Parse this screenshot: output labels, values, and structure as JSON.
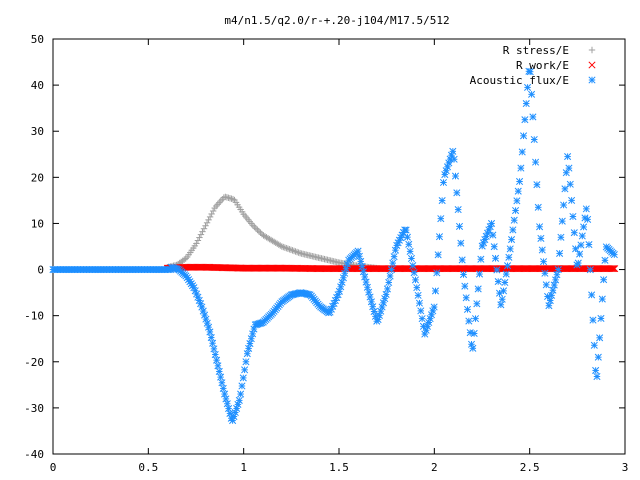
{
  "chart_data": {
    "type": "scatter",
    "title": "m4/n1.5/q2.0/r-+.20-j104/M17.5/512",
    "xlabel": "",
    "ylabel": "",
    "xlim": [
      0,
      3
    ],
    "ylim": [
      -40,
      50
    ],
    "x_ticks": [
      0,
      0.5,
      1,
      1.5,
      2,
      2.5,
      3
    ],
    "x_tick_labels": [
      "0",
      "0.5",
      "1",
      "1.5",
      "2",
      "2.5",
      "3"
    ],
    "y_ticks": [
      -40,
      -30,
      -20,
      -10,
      0,
      10,
      20,
      30,
      40,
      50
    ],
    "y_tick_labels": [
      "-40",
      "-30",
      "-20",
      "-10",
      "0",
      "10",
      "20",
      "30",
      "40",
      "50"
    ],
    "grid": false,
    "legend_position": "top-right",
    "series": [
      {
        "name": "R stress/E",
        "marker": "plus",
        "color": "#a0a0a0",
        "x": [
          0.6,
          0.65,
          0.7,
          0.75,
          0.8,
          0.85,
          0.9,
          0.95,
          1.0,
          1.05,
          1.1,
          1.2,
          1.3,
          1.4,
          1.5,
          1.6,
          1.7
        ],
        "y": [
          0.5,
          1.0,
          2.5,
          5.5,
          9.5,
          13.5,
          15.8,
          15.2,
          12.0,
          9.5,
          7.5,
          5.0,
          3.5,
          2.5,
          1.5,
          0.8,
          0.3
        ]
      },
      {
        "name": "R work/E",
        "marker": "cross",
        "color": "#ff0000",
        "x": [
          0.6,
          0.7,
          0.8,
          0.9,
          1.0,
          1.2,
          1.4,
          1.6,
          1.8,
          2.0,
          2.2,
          2.4,
          2.6,
          2.8,
          2.95
        ],
        "y": [
          0.3,
          0.5,
          0.5,
          0.4,
          0.3,
          0.3,
          0.2,
          0.2,
          0.2,
          0.2,
          0.2,
          0.2,
          0.2,
          0.2,
          0.2
        ]
      },
      {
        "name": "Acoustic flux/E",
        "marker": "star",
        "color": "#1e8fff",
        "x": [
          0.62,
          0.66,
          0.7,
          0.74,
          0.78,
          0.82,
          0.86,
          0.9,
          0.94,
          0.98,
          1.02,
          1.06,
          1.1,
          1.15,
          1.2,
          1.25,
          1.3,
          1.35,
          1.4,
          1.45,
          1.5,
          1.55,
          1.6,
          1.65,
          1.7,
          1.75,
          1.8,
          1.85,
          1.9,
          1.95,
          2.0,
          2.05,
          2.1,
          2.15,
          2.2,
          2.25,
          2.3,
          2.35,
          2.4,
          2.45,
          2.5,
          2.55,
          2.6,
          2.65,
          2.7,
          2.75,
          2.8,
          2.85,
          2.9,
          2.95
        ],
        "y": [
          0.5,
          0.0,
          -1.5,
          -4.0,
          -8.0,
          -13.0,
          -20.0,
          -27.0,
          -33.0,
          -28.0,
          -18.0,
          -12.0,
          -11.5,
          -9.5,
          -7.0,
          -5.5,
          -5.0,
          -5.5,
          -8.0,
          -9.5,
          -5.0,
          2.0,
          4.0,
          -4.0,
          -11.5,
          -5.0,
          5.0,
          9.0,
          -2.0,
          -14.0,
          -8.0,
          20.0,
          26.0,
          0.0,
          -18.0,
          5.0,
          10.0,
          -8.0,
          5.0,
          20.0,
          45.0,
          10.0,
          -8.0,
          0.0,
          25.0,
          0.0,
          14.0,
          -25.0,
          5.0,
          3.0
        ]
      }
    ]
  }
}
